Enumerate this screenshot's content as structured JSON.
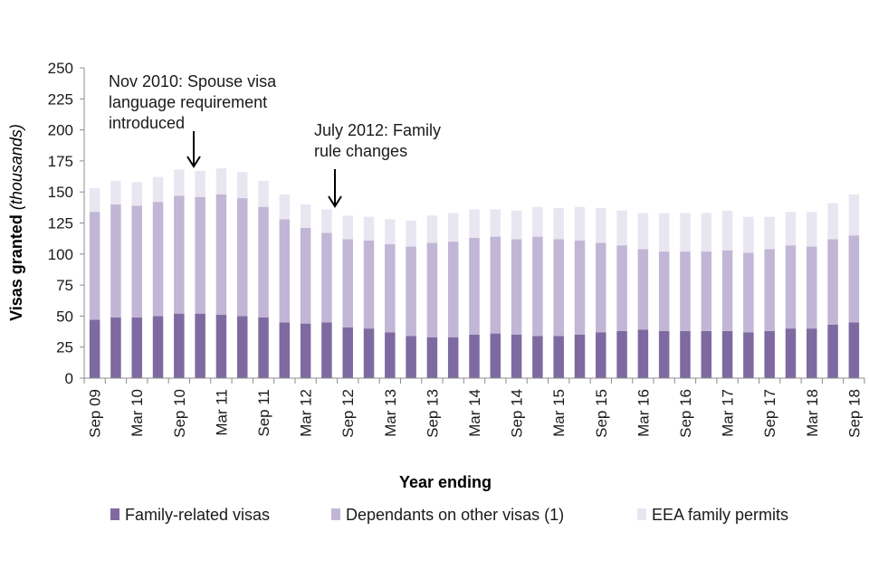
{
  "chart_data": {
    "type": "bar",
    "stacked": true,
    "title": "",
    "xlabel": "Year ending",
    "ylabel_main": "Visas granted",
    "ylabel_unit": "(thousands)",
    "ylim": [
      0,
      250
    ],
    "yticks": [
      0,
      25,
      50,
      75,
      100,
      125,
      150,
      175,
      200,
      225,
      250
    ],
    "x_tick_labels": [
      "Sep 09",
      "Mar 10",
      "Sep 10",
      "Mar 11",
      "Sep 11",
      "Mar 12",
      "Sep 12",
      "Mar 13",
      "Sep 13",
      "Mar 14",
      "Sep 14",
      "Mar 15",
      "Sep 15",
      "Mar 16",
      "Sep 16",
      "Mar 17",
      "Sep 17",
      "Mar 18",
      "Sep 18"
    ],
    "n_periods": 37,
    "series": [
      {
        "name": "Family-related visas",
        "color": "#7e6aa0",
        "values": [
          47,
          49,
          49,
          50,
          52,
          52,
          51,
          50,
          49,
          45,
          44,
          45,
          41,
          40,
          37,
          34,
          33,
          33,
          35,
          36,
          35,
          34,
          34,
          35,
          37,
          38,
          39,
          38,
          38,
          38,
          38,
          37,
          38,
          40,
          40,
          43,
          45
        ]
      },
      {
        "name": "Dependants on other visas (1)",
        "color": "#c1b6d6",
        "values": [
          87,
          91,
          90,
          92,
          95,
          94,
          97,
          95,
          89,
          83,
          77,
          72,
          71,
          71,
          71,
          72,
          76,
          77,
          78,
          78,
          77,
          80,
          78,
          76,
          72,
          69,
          65,
          64,
          64,
          64,
          65,
          64,
          66,
          67,
          66,
          69,
          70
        ]
      },
      {
        "name": "EEA family permits",
        "color": "#e9e6f1",
        "values": [
          19,
          19,
          19,
          20,
          21,
          21,
          21,
          21,
          21,
          20,
          19,
          19,
          19,
          19,
          20,
          21,
          22,
          23,
          23,
          22,
          23,
          24,
          25,
          27,
          28,
          28,
          29,
          31,
          31,
          31,
          32,
          29,
          26,
          27,
          28,
          29,
          33
        ]
      }
    ],
    "annotations": [
      {
        "lines": [
          "Nov 2010: Spouse visa",
          "language requirement",
          "introduced"
        ],
        "period_index": 5
      },
      {
        "lines": [
          "July 2012: Family",
          "rule changes"
        ],
        "period_index": 11
      }
    ],
    "legend_position": "bottom"
  }
}
